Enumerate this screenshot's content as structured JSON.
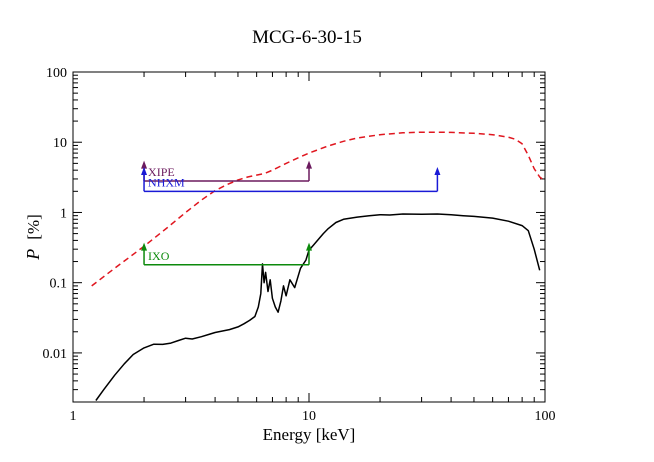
{
  "chart_data": {
    "type": "line",
    "title": "MCG-6-30-15",
    "xlabel": "Energy [keV]",
    "ylabel_symbol": "P",
    "ylabel_unit": "[%]",
    "xscale": "log",
    "yscale": "log",
    "xlim": [
      1,
      100
    ],
    "ylim": [
      0.002,
      100
    ],
    "x_ticks": [
      {
        "value": 1,
        "label": "1"
      },
      {
        "value": 10,
        "label": "10"
      },
      {
        "value": 100,
        "label": "100"
      }
    ],
    "y_ticks": [
      {
        "value": 0.01,
        "label": "0.01"
      },
      {
        "value": 0.1,
        "label": "0.1"
      },
      {
        "value": 1,
        "label": "1"
      },
      {
        "value": 10,
        "label": "10"
      },
      {
        "value": 100,
        "label": "100"
      }
    ],
    "series": [
      {
        "name": "dashed-model",
        "color": "#e0161f",
        "style": "dashed",
        "x": [
          1.2,
          1.5,
          2,
          2.5,
          3,
          3.5,
          4,
          4.5,
          5,
          5.5,
          6,
          6.5,
          7,
          8,
          9,
          10,
          12,
          14,
          16,
          20,
          25,
          30,
          35,
          40,
          50,
          60,
          70,
          75,
          80,
          85,
          90,
          95,
          100
        ],
        "y": [
          0.09,
          0.16,
          0.33,
          0.6,
          1.0,
          1.5,
          2.05,
          2.5,
          2.9,
          3.2,
          3.4,
          3.6,
          4.0,
          5.0,
          6.0,
          7.0,
          8.8,
          10.3,
          11.5,
          12.8,
          13.6,
          13.9,
          13.9,
          13.8,
          13.4,
          12.8,
          11.8,
          11.0,
          9.5,
          6.5,
          4.2,
          3.2,
          2.8
        ]
      },
      {
        "name": "solid-model",
        "color": "#000000",
        "style": "solid",
        "x": [
          1.25,
          1.35,
          1.5,
          1.65,
          1.8,
          2.0,
          2.2,
          2.4,
          2.6,
          2.8,
          3.0,
          3.2,
          3.5,
          3.8,
          4.0,
          4.3,
          4.6,
          5.0,
          5.3,
          5.6,
          5.9,
          6.1,
          6.25,
          6.35,
          6.45,
          6.55,
          6.7,
          6.85,
          7.0,
          7.2,
          7.4,
          7.6,
          7.8,
          8.0,
          8.3,
          8.7,
          9.2,
          9.7,
          10.0,
          10.5,
          11,
          11.5,
          12,
          13,
          14,
          16,
          18,
          20,
          22,
          25,
          30,
          35,
          40,
          45,
          50,
          60,
          70,
          80,
          85,
          90,
          95
        ],
        "y": [
          0.0021,
          0.003,
          0.0048,
          0.007,
          0.0095,
          0.0118,
          0.0133,
          0.0132,
          0.0138,
          0.015,
          0.0162,
          0.0158,
          0.017,
          0.0185,
          0.0195,
          0.0205,
          0.0215,
          0.0235,
          0.026,
          0.029,
          0.033,
          0.045,
          0.07,
          0.185,
          0.1,
          0.14,
          0.075,
          0.11,
          0.06,
          0.045,
          0.038,
          0.055,
          0.09,
          0.065,
          0.11,
          0.085,
          0.16,
          0.21,
          0.29,
          0.35,
          0.42,
          0.5,
          0.58,
          0.72,
          0.8,
          0.86,
          0.9,
          0.93,
          0.92,
          0.95,
          0.94,
          0.95,
          0.93,
          0.9,
          0.88,
          0.83,
          0.75,
          0.65,
          0.55,
          0.3,
          0.15
        ]
      }
    ],
    "bands": [
      {
        "name": "XIPE",
        "color": "#6b1a5e",
        "x1": 2,
        "x2": 10,
        "y": 2.8,
        "top": 5.3
      },
      {
        "name": "NHXM",
        "color": "#1a1ad6",
        "x1": 2,
        "x2": 35,
        "y": 2.0,
        "top": 4.3
      },
      {
        "name": "IXO",
        "color": "#0c8a0c",
        "x1": 2,
        "x2": 10,
        "y": 0.18,
        "top": 0.36
      }
    ]
  }
}
